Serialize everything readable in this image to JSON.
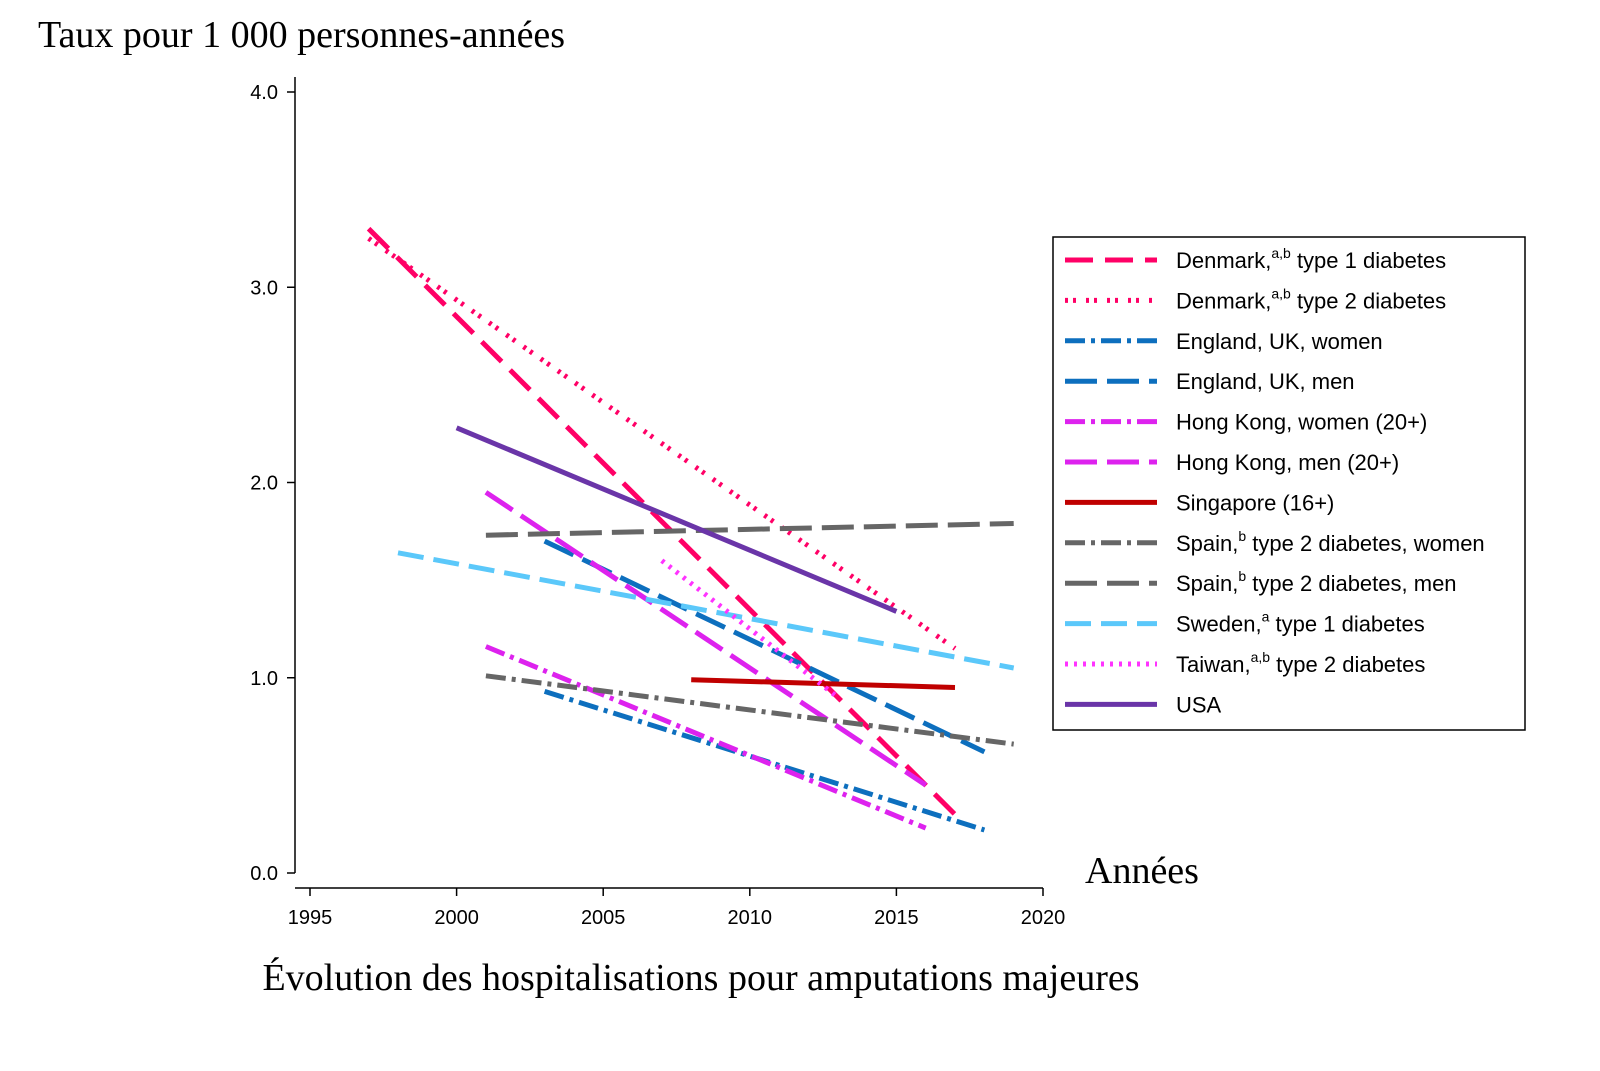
{
  "chart_data": {
    "type": "line",
    "title": "Évolution des hospitalisations pour amputations majeures",
    "ylabel": "Taux pour 1 000 personnes-années",
    "xlabel": "Années",
    "xlim": [
      1995,
      2020
    ],
    "ylim": [
      0,
      4
    ],
    "x_ticks": [
      "1995",
      "2000",
      "2005",
      "2010",
      "2015",
      "2020"
    ],
    "y_ticks": [
      "0.0",
      "1.0",
      "2.0",
      "3.0",
      "4.0"
    ],
    "legend_position": "right",
    "series": [
      {
        "name": "Denmark, type 1 diabetes",
        "label": "Denmark,",
        "sup": "a,b",
        "rest": " type 1 diabetes",
        "color": "#ff0066",
        "dash": "28,12",
        "points": [
          [
            1997,
            3.3
          ],
          [
            2017,
            0.3
          ]
        ]
      },
      {
        "name": "Denmark, type 2 diabetes",
        "label": "Denmark,",
        "sup": "a,b",
        "rest": " type 2 diabetes",
        "color": "#ff0066",
        "dash": "3,5,3,10",
        "points": [
          [
            1997,
            3.25
          ],
          [
            2017,
            1.15
          ]
        ]
      },
      {
        "name": "England, UK, women",
        "label": "England, UK, women",
        "sup": "",
        "rest": "",
        "color": "#0d6fbe",
        "dash": "20,6,4,6",
        "points": [
          [
            2003,
            0.93
          ],
          [
            2018,
            0.22
          ]
        ]
      },
      {
        "name": "England, UK, men",
        "label": "England, UK, men",
        "sup": "",
        "rest": "",
        "color": "#0d6fbe",
        "dash": "32,10",
        "points": [
          [
            2003,
            1.7
          ],
          [
            2018,
            0.62
          ]
        ]
      },
      {
        "name": "Hong Kong, women (20+)",
        "label": "Hong Kong, women (20+)",
        "sup": "",
        "rest": "",
        "color": "#dd22ee",
        "dash": "20,6,4,6",
        "points": [
          [
            2001,
            1.16
          ],
          [
            2016,
            0.23
          ]
        ]
      },
      {
        "name": "Hong Kong, men (20+)",
        "label": "Hong Kong, men (20+)",
        "sup": "",
        "rest": "",
        "color": "#dd22ee",
        "dash": "32,10",
        "points": [
          [
            2001,
            1.95
          ],
          [
            2016,
            0.45
          ]
        ]
      },
      {
        "name": "Singapore (16+)",
        "label": "Singapore (16+)",
        "sup": "",
        "rest": "",
        "color": "#c00000",
        "dash": "",
        "points": [
          [
            2008,
            0.99
          ],
          [
            2017,
            0.95
          ]
        ]
      },
      {
        "name": "Spain, type 2 diabetes, women",
        "label": "Spain,",
        "sup": "b",
        "rest": " type 2 diabetes, women",
        "color": "#666666",
        "dash": "20,6,4,6",
        "points": [
          [
            2001,
            1.01
          ],
          [
            2019,
            0.66
          ]
        ]
      },
      {
        "name": "Spain, type 2 diabetes, men",
        "label": "Spain,",
        "sup": "b",
        "rest": " type 2 diabetes, men",
        "color": "#666666",
        "dash": "32,10",
        "points": [
          [
            2001,
            1.73
          ],
          [
            2019,
            1.79
          ]
        ]
      },
      {
        "name": "Sweden, type 1 diabetes",
        "label": "Sweden,",
        "sup": "a",
        "rest": " type 1 diabetes",
        "color": "#5bc8fa",
        "dash": "26,10",
        "points": [
          [
            1998,
            1.64
          ],
          [
            2019,
            1.05
          ]
        ]
      },
      {
        "name": "Taiwan, type 2 diabetes",
        "label": "Taiwan,",
        "sup": "a,b",
        "rest": " type 2 diabetes",
        "color": "#ff33ff",
        "dash": "3,6",
        "points": [
          [
            2007,
            1.6
          ],
          [
            2013,
            0.9
          ]
        ]
      },
      {
        "name": "USA",
        "label": "USA",
        "sup": "",
        "rest": "",
        "color": "#6a35a8",
        "dash": "",
        "points": [
          [
            2000,
            2.28
          ],
          [
            2015,
            1.34
          ]
        ]
      }
    ]
  }
}
